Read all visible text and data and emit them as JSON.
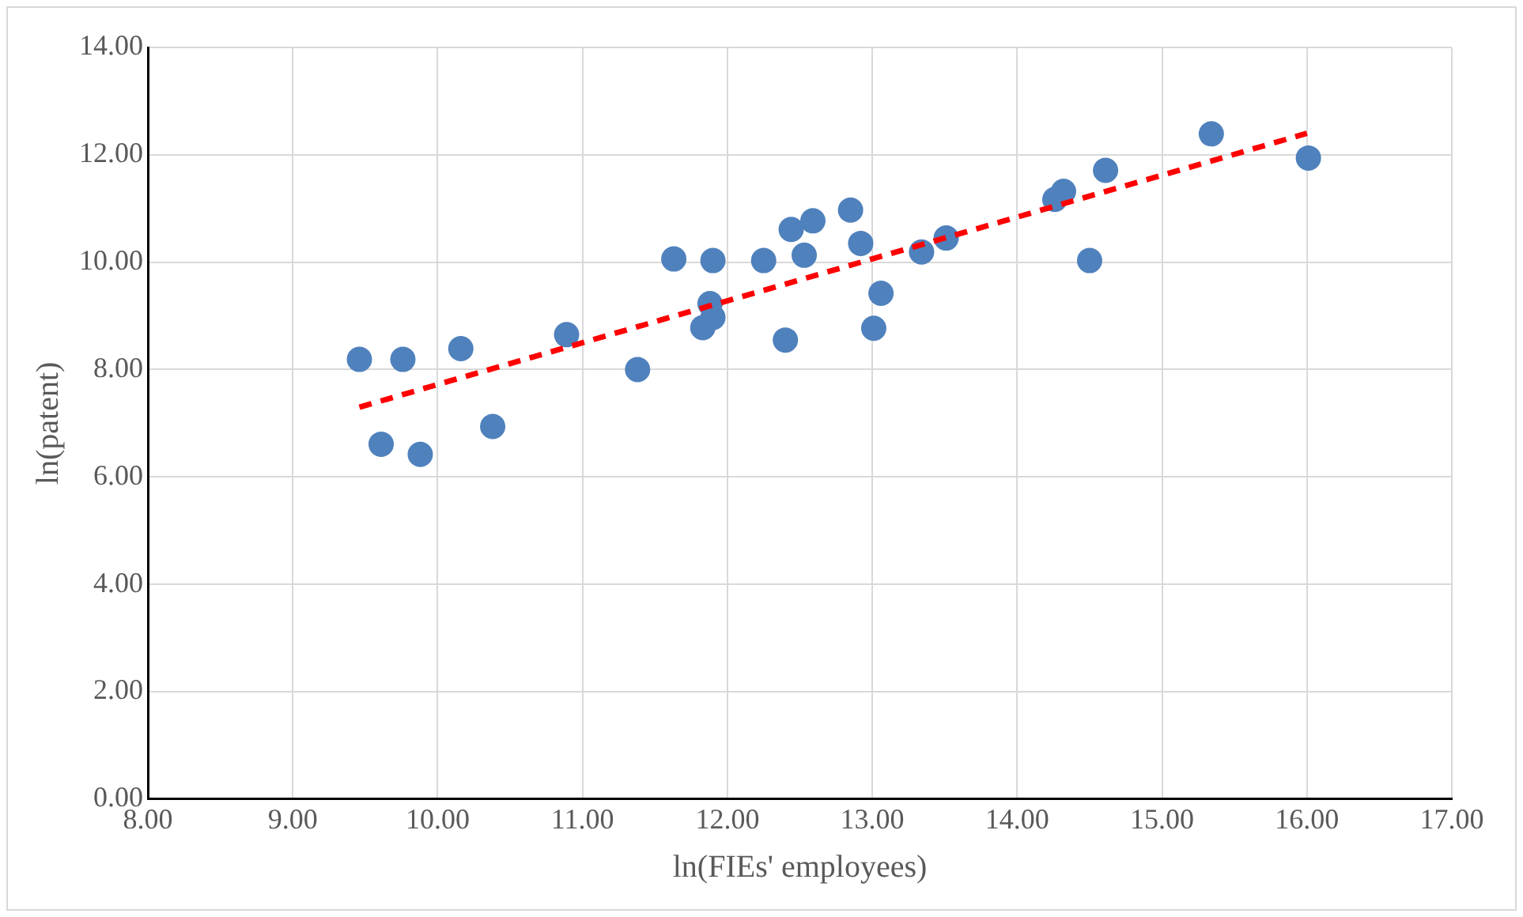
{
  "chart_data": {
    "type": "scatter",
    "xlabel": "ln(FIEs' employees)",
    "ylabel": "ln(patent)",
    "xlim": [
      8,
      17
    ],
    "ylim": [
      0,
      14
    ],
    "xticks": [
      {
        "value": 8,
        "label": "8.00"
      },
      {
        "value": 9,
        "label": "9.00"
      },
      {
        "value": 10,
        "label": "10.00"
      },
      {
        "value": 11,
        "label": "11.00"
      },
      {
        "value": 12,
        "label": "12.00"
      },
      {
        "value": 13,
        "label": "13.00"
      },
      {
        "value": 14,
        "label": "14.00"
      },
      {
        "value": 15,
        "label": "15.00"
      },
      {
        "value": 16,
        "label": "16.00"
      },
      {
        "value": 17,
        "label": "17.00"
      }
    ],
    "yticks": [
      {
        "value": 0,
        "label": "0.00"
      },
      {
        "value": 2,
        "label": "2.00"
      },
      {
        "value": 4,
        "label": "4.00"
      },
      {
        "value": 6,
        "label": "6.00"
      },
      {
        "value": 8,
        "label": "8.00"
      },
      {
        "value": 10,
        "label": "10.00"
      },
      {
        "value": 12,
        "label": "12.00"
      },
      {
        "value": 14,
        "label": "14.00"
      }
    ],
    "grid": true,
    "legend": false,
    "series": [
      {
        "type": "scatter",
        "color": "#4f81bd",
        "marker": "circle",
        "x": [
          9.46,
          9.61,
          9.76,
          9.88,
          10.16,
          10.38,
          10.89,
          11.38,
          11.63,
          11.83,
          11.88,
          11.9,
          11.9,
          12.25,
          12.4,
          12.44,
          12.53,
          12.59,
          12.85,
          12.92,
          13.01,
          13.06,
          13.34,
          13.51,
          14.26,
          14.32,
          14.5,
          14.61,
          15.34,
          16.01
        ],
        "values": [
          8.19,
          6.61,
          8.19,
          6.42,
          8.39,
          6.94,
          8.65,
          8.0,
          10.06,
          8.78,
          9.23,
          8.97,
          10.03,
          10.03,
          8.55,
          10.61,
          10.13,
          10.77,
          10.97,
          10.35,
          8.77,
          9.42,
          10.19,
          10.45,
          11.17,
          11.32,
          10.03,
          11.71,
          12.39,
          11.94
        ]
      },
      {
        "type": "line",
        "color": "#ff0000",
        "line_style": "dashed",
        "marker": "none",
        "x": [
          9.46,
          16.0
        ],
        "values": [
          7.3,
          12.4
        ]
      }
    ]
  }
}
